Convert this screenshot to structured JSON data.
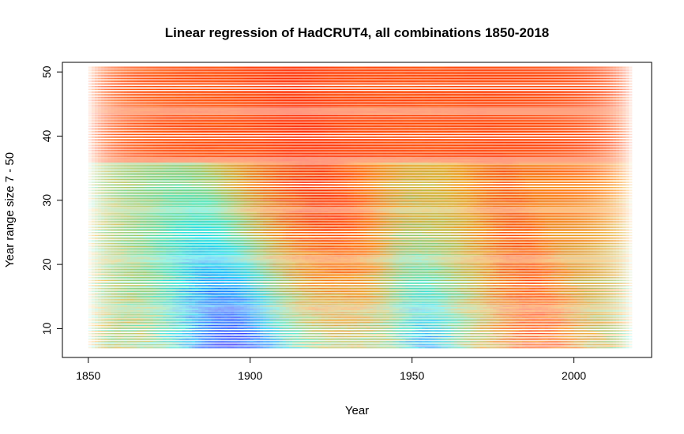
{
  "chart_data": {
    "type": "line",
    "title": "Linear regression of HadCRUT4, all combinations 1850-2018",
    "xlabel": "Year",
    "ylabel": "Year range size 7 - 50",
    "xlim": [
      1842,
      2024
    ],
    "ylim": [
      5.5,
      51.5
    ],
    "x_ticks": [
      1850,
      1900,
      1950,
      2000
    ],
    "y_ticks": [
      10,
      20,
      30,
      40,
      50
    ],
    "grid": false,
    "legend": "none",
    "data_range": {
      "start_year": 1850,
      "end_year": 2018,
      "window_min": 7,
      "window_max": 50
    },
    "segments_per_window": 4,
    "color_scale": [
      "#0000ff",
      "#00ffff",
      "#ffa500",
      "#ff0000"
    ]
  }
}
